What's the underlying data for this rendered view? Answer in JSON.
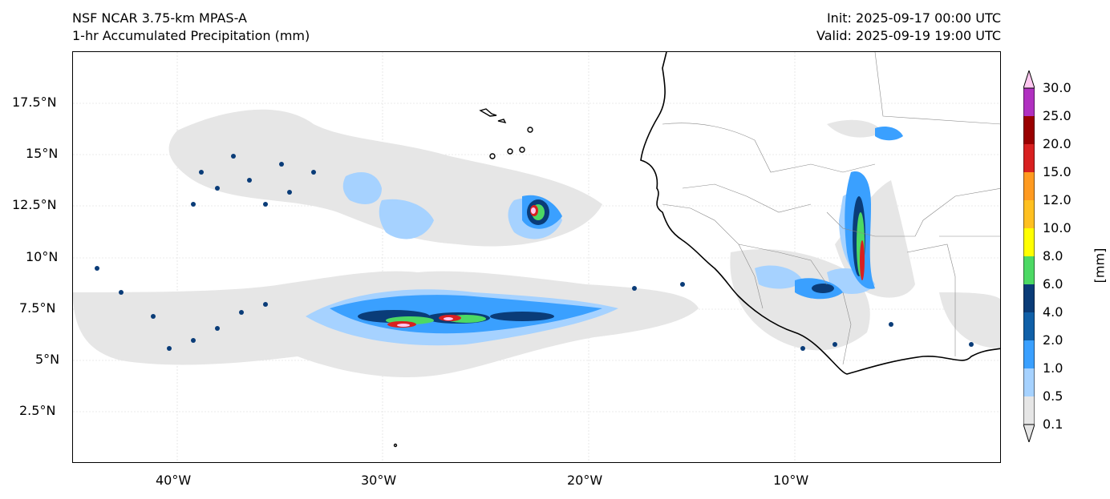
{
  "header": {
    "model": "NSF NCAR 3.75-km MPAS-A",
    "field": "1-hr Accumulated Precipitation (mm)",
    "init": "Init: 2025-09-17 00:00 UTC",
    "valid": "Valid: 2025-09-19 19:00 UTC"
  },
  "axes": {
    "lon_labels": [
      "40°W",
      "30°W",
      "20°W",
      "10°W"
    ],
    "lat_labels": [
      "17.5°N",
      "15°N",
      "12.5°N",
      "10°N",
      "7.5°N",
      "5°N",
      "2.5°N"
    ]
  },
  "colorbar": {
    "unit": "[mm]",
    "ticks": [
      "0.1",
      "0.5",
      "1.0",
      "2.0",
      "4.0",
      "6.0",
      "8.0",
      "10.0",
      "12.0",
      "15.0",
      "20.0",
      "25.0",
      "30.0"
    ],
    "colors": [
      "#e6e6e6",
      "#a6d2ff",
      "#3aa0ff",
      "#1060a8",
      "#0a3c78",
      "#4cd964",
      "#ffff00",
      "#ffc020",
      "#ff9a20",
      "#d82020",
      "#9a0000",
      "#b030c0",
      "#ffc8f0"
    ]
  }
}
